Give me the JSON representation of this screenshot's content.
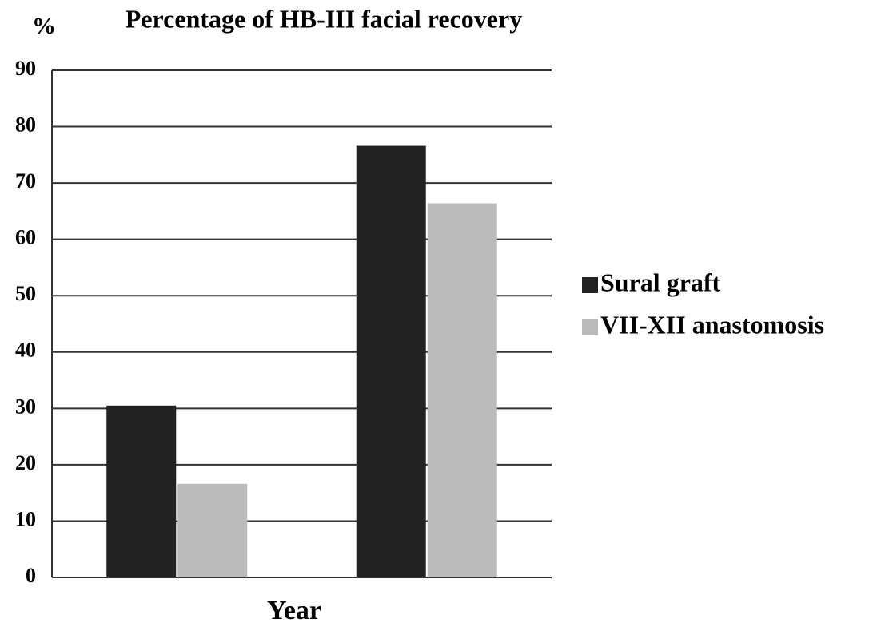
{
  "chart_data": {
    "type": "bar",
    "title": "Percentage of HB-III facial recovery",
    "y_label": "%",
    "x_label": "Year",
    "categories": [
      null,
      null
    ],
    "series": [
      {
        "name": "Sural graft",
        "color": "#222222",
        "values": [
          30.5,
          76.6
        ]
      },
      {
        "name": "VII-XII anastomosis",
        "color": "#bbbbbb",
        "values": [
          16.6,
          66.4
        ]
      }
    ],
    "ylim": [
      0,
      90
    ],
    "yticks": [
      0,
      10,
      20,
      30,
      40,
      50,
      60,
      70,
      80,
      90
    ],
    "grid": true,
    "legend": "right"
  }
}
